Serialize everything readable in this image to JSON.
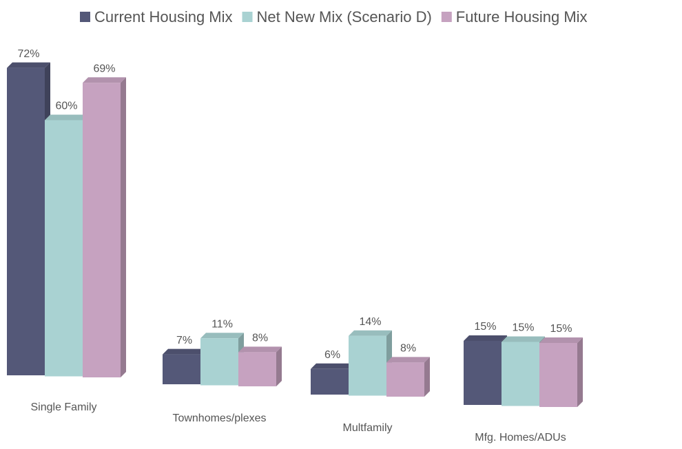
{
  "chart_data": {
    "type": "bar3d",
    "categories": [
      "Single Family",
      "Townhomes/plexes",
      "Multfamily",
      "Mfg. Homes/ADUs"
    ],
    "series": [
      {
        "name": "Current  Housing Mix",
        "color": "#545878",
        "values": [
          72,
          7,
          6,
          15
        ],
        "value_labels": [
          "72%",
          "7%",
          "6%",
          "15%"
        ]
      },
      {
        "name": "Net New Mix (Scenario D)",
        "color": "#a9d2d2",
        "values": [
          60,
          11,
          14,
          15
        ],
        "value_labels": [
          "60%",
          "11%",
          "14%",
          "15%"
        ]
      },
      {
        "name": "Future Housing Mix",
        "color": "#c6a2c0",
        "values": [
          69,
          8,
          8,
          15
        ],
        "value_labels": [
          "69%",
          "8%",
          "8%",
          "15%"
        ]
      }
    ],
    "legend": "top"
  }
}
